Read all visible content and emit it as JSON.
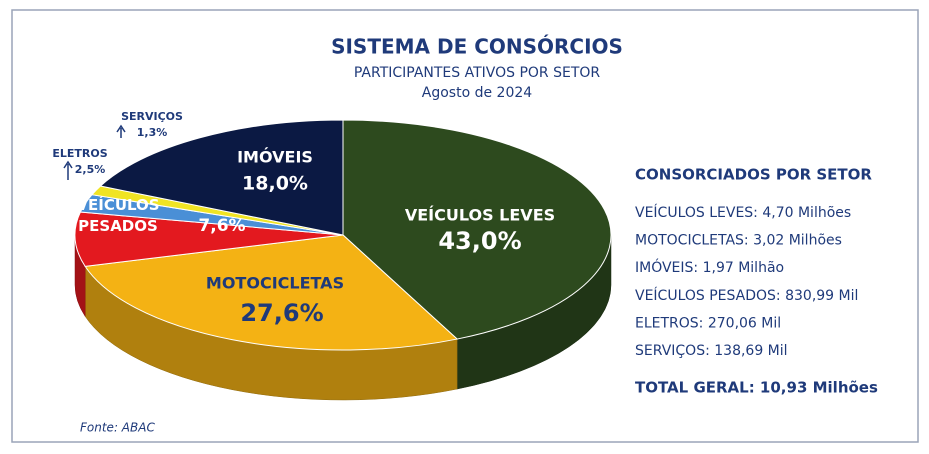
{
  "chart_data": {
    "type": "pie",
    "title": "SISTEMA DE CONSÓRCIOS",
    "subtitle": "PARTICIPANTES ATIVOS POR SETOR",
    "date": "Agosto de 2024",
    "categories": [
      "VEÍCULOS LEVES",
      "MOTOCICLETAS",
      "VEÍCULOS PESADOS",
      "ELETROS",
      "SERVIÇOS",
      "IMÓVEIS"
    ],
    "values": [
      43.0,
      27.6,
      7.6,
      2.5,
      1.3,
      18.0
    ],
    "value_labels": [
      "43,0%",
      "27,6%",
      "7,6%",
      "2,5%",
      "1,3%",
      "18,0%"
    ],
    "colors": [
      "#2d4a1e",
      "#f4b214",
      "#e3191f",
      "#4a8fd6",
      "#f0e424",
      "#0b1943"
    ],
    "legend_title": "CONSORCIADOS POR SETOR",
    "legend_items": [
      "VEÍCULOS LEVES: 4,70 Milhões",
      "MOTOCICLETAS: 3,02 Milhões",
      "IMÓVEIS: 1,97 Milhão",
      "VEÍCULOS PESADOS: 830,99 Mil",
      "ELETROS: 270,06 Mil",
      "SERVIÇOS: 138,69 Mil"
    ],
    "total": "TOTAL GERAL: 10,93 Milhões",
    "source": "Fonte: ABAC"
  }
}
